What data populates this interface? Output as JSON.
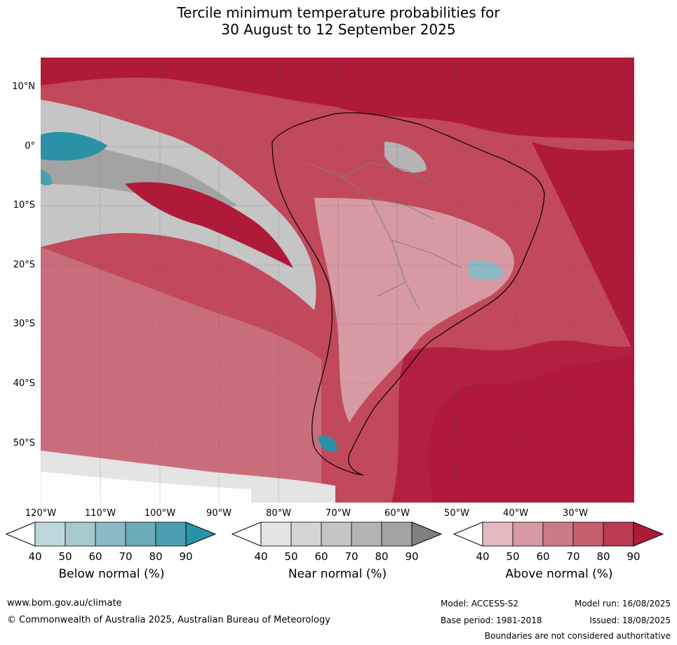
{
  "title": {
    "line1": "Tercile minimum temperature probabilities for",
    "line2": "30 August to 12 September 2025"
  },
  "map": {
    "lat_labels": [
      "10°N",
      "0°",
      "10°S",
      "20°S",
      "30°S",
      "40°S",
      "50°S"
    ],
    "lon_labels": [
      "120°W",
      "110°W",
      "100°W",
      "90°W",
      "80°W",
      "70°W",
      "60°W",
      "50°W",
      "40°W",
      "30°W"
    ]
  },
  "legend": {
    "below": {
      "label": "Below normal (%)",
      "ticks": [
        "40",
        "50",
        "60",
        "70",
        "80",
        "90"
      ],
      "colors": [
        "#bdd7dc",
        "#a6c8cf",
        "#8bbac3",
        "#6cabb8",
        "#4b9fb0",
        "#2a92a6"
      ]
    },
    "near": {
      "label": "Near normal (%)",
      "ticks": [
        "40",
        "50",
        "60",
        "70",
        "80",
        "90"
      ],
      "colors": [
        "#e4e4e4",
        "#d5d5d5",
        "#c5c5c5",
        "#b4b4b4",
        "#a3a3a3",
        "#808080"
      ]
    },
    "above": {
      "label": "Above normal (%)",
      "ticks": [
        "40",
        "50",
        "60",
        "70",
        "80",
        "90"
      ],
      "colors": [
        "#e3b8be",
        "#d79aa2",
        "#cc7a86",
        "#c45e6c",
        "#ba3a4f",
        "#b01a39"
      ]
    }
  },
  "footer": {
    "website": "www.bom.gov.au/climate",
    "copyright": "© Commonwealth of Australia 2025, Australian Bureau of Meteorology",
    "model": "Model: ACCESS-S2",
    "model_run": "Model run: 16/08/2025",
    "base_period": "Base period: 1981-2018",
    "issued": "Issued: 18/08/2025",
    "disclaimer": "Boundaries are not considered authoritative"
  }
}
